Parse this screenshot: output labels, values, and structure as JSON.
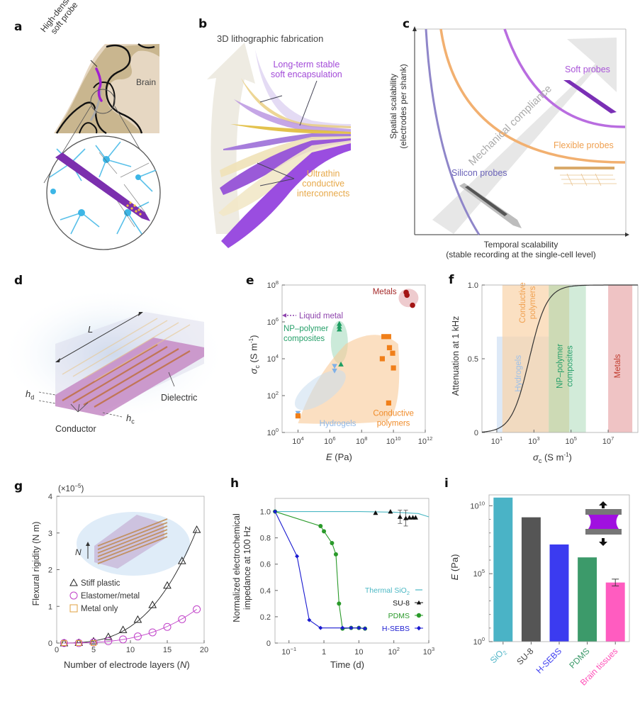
{
  "panels": {
    "a": {
      "label": "a",
      "probe_label_line1": "High-density",
      "probe_label_line2": "soft probe",
      "brain_label": "Brain"
    },
    "b": {
      "label": "b",
      "title": "3D lithographic fabrication",
      "encapsulation_line1": "Long-term stable",
      "encapsulation_line2": "soft encapsulation",
      "interconnect_line1": "Ultrathin",
      "interconnect_line2": "conductive",
      "interconnect_line3": "interconnects"
    },
    "c": {
      "label": "c",
      "ylabel_line1": "Spatial scalability",
      "ylabel_line2": "(electrodes per shank)",
      "xlabel_line1": "Temporal scalability",
      "xlabel_line2": "(stable recording at the single-cell level)",
      "arrow_label": "Mechanical compliance",
      "curves": [
        {
          "name": "Silicon probes",
          "color": "#8f86c9"
        },
        {
          "name": "Flexible probes",
          "color": "#f2a55a"
        },
        {
          "name": "Soft probes",
          "color": "#b35de0"
        }
      ]
    },
    "d": {
      "label": "d",
      "length_label": "L",
      "hd_label": "h",
      "hd_sub": "d",
      "hc_label": "h",
      "hc_sub": "c",
      "dielectric_label": "Dielectric",
      "conductor_label": "Conductor"
    },
    "g_inset": {
      "n_label": "N"
    },
    "i_inset": {
      "icon": "tensile-test-icon"
    }
  },
  "chart_data": [
    {
      "id": "e",
      "label": "e",
      "type": "scatter",
      "xlabel": "E (Pa)",
      "xlabel_var": "E",
      "xlabel_unit": " (Pa)",
      "ylabel_var": "σ",
      "ylabel_sub": "c",
      "ylabel_unit": " (S m",
      "ylabel_sup": "-1",
      "ylabel_end": ")",
      "xscale": "log",
      "yscale": "log",
      "xlim_exp": [
        3,
        12
      ],
      "ylim_exp": [
        0,
        8
      ],
      "xticks": [
        {
          "base": "10",
          "exp": "4",
          "v": 4
        },
        {
          "base": "10",
          "exp": "6",
          "v": 6
        },
        {
          "base": "10",
          "exp": "8",
          "v": 8
        },
        {
          "base": "10",
          "exp": "10",
          "v": 10
        },
        {
          "base": "10",
          "exp": "12",
          "v": 12
        }
      ],
      "yticks": [
        {
          "base": "10",
          "exp": "0",
          "v": 0
        },
        {
          "base": "10",
          "exp": "2",
          "v": 2
        },
        {
          "base": "10",
          "exp": "4",
          "v": 4
        },
        {
          "base": "10",
          "exp": "6",
          "v": 6
        },
        {
          "base": "10",
          "exp": "8",
          "v": 8
        }
      ],
      "annotations": [
        {
          "text": "Metals",
          "color": "#a52a2a"
        },
        {
          "text": "Liquid metal",
          "color": "#8e44ad"
        },
        {
          "text": "NP–polymer",
          "color": "#27a06a"
        },
        {
          "text": "composites",
          "color": "#27a06a"
        },
        {
          "text": "Hydrogels",
          "color": "#8fb8e8"
        },
        {
          "text": "Conductive",
          "color": "#f08c2a"
        },
        {
          "text": "polymers",
          "color": "#f08c2a"
        }
      ],
      "series": [
        {
          "name": "Metals",
          "marker": "circle",
          "color": "#a31515",
          "points_log10": [
            [
              10.8,
              7.6
            ],
            [
              10.85,
              7.45
            ],
            [
              11.2,
              6.9
            ]
          ]
        },
        {
          "name": "Liquid metal",
          "marker": "arrow-left",
          "color": "#8e44ad",
          "points_log10": [
            [
              3.0,
              6.35
            ]
          ]
        },
        {
          "name": "NP-polymer composites",
          "marker": "triangle-up",
          "color": "#1e9e62",
          "points_log10": [
            [
              6.6,
              5.9
            ],
            [
              6.6,
              5.75
            ],
            [
              6.6,
              5.6
            ],
            [
              6.7,
              3.7
            ]
          ]
        },
        {
          "name": "Hydrogels",
          "marker": "triangle-down",
          "color": "#7fb1e8",
          "points_log10": [
            [
              6.3,
              3.6
            ],
            [
              6.3,
              3.35
            ],
            [
              4.0,
              1.05
            ]
          ]
        },
        {
          "name": "Conductive polymers",
          "marker": "square",
          "color": "#f07f1a",
          "points_log10": [
            [
              9.4,
              5.2
            ],
            [
              9.7,
              5.2
            ],
            [
              9.75,
              4.6
            ],
            [
              9.95,
              4.3
            ],
            [
              9.3,
              4.0
            ],
            [
              10.0,
              3.5
            ],
            [
              9.7,
              1.6
            ],
            [
              4.0,
              0.9
            ]
          ]
        }
      ]
    },
    {
      "id": "f",
      "label": "f",
      "type": "line",
      "ylabel": "Attenuation at 1 kHz",
      "xlabel_var": "σ",
      "xlabel_sub": "c",
      "xlabel_unit": " (S m",
      "xlabel_sup": "-1",
      "xlabel_end": ")",
      "xscale": "log",
      "xlim_exp": [
        0.2,
        8.6
      ],
      "ylim": [
        0,
        1.0
      ],
      "xticks": [
        {
          "base": "10",
          "exp": "1",
          "v": 1
        },
        {
          "base": "10",
          "exp": "3",
          "v": 3
        },
        {
          "base": "10",
          "exp": "5",
          "v": 5
        },
        {
          "base": "10",
          "exp": "7",
          "v": 7
        }
      ],
      "yticks": [
        {
          "text": "0",
          "v": 0
        },
        {
          "text": "0.5",
          "v": 0.5
        },
        {
          "text": "1.0",
          "v": 1.0
        }
      ],
      "bands": [
        {
          "name": "Hydrogels",
          "range_log10": [
            1.0,
            3.8
          ],
          "ymax": 0.65,
          "color": "#cfe0f4",
          "text_color": "#9cc0ea"
        },
        {
          "name": "Conductive polymers",
          "text1": "Conductive",
          "text2": "polymers",
          "range_log10": [
            1.3,
            3.8
          ],
          "ymax": 1.0,
          "color": "#f9d3a8",
          "text_color": "#f0a050"
        },
        {
          "name": "NP–polymer composites",
          "text1": "NP–polymer",
          "text2": "composites",
          "range_log10": [
            3.8,
            5.8
          ],
          "ymax": 1.0,
          "color": "#bfe3c9",
          "text_color": "#27a06a"
        },
        {
          "name": "Metals",
          "range_log10": [
            7.0,
            8.3
          ],
          "ymax": 1.0,
          "color": "#e8a9ab",
          "text_color": "#c0392b"
        }
      ],
      "curve": {
        "kind": "sigmoid",
        "midpoint_log10": 2.75,
        "steepness": 1.55,
        "color": "#333333"
      }
    },
    {
      "id": "g",
      "label": "g",
      "type": "line",
      "ylabel": "Flexural rigidity (N m)",
      "xlabel": "Number of electrode layers (N)",
      "xlabel_pre": "Number of electrode layers (",
      "xlabel_var": "N",
      "xlabel_post": ")",
      "multiplier": "(×10",
      "multiplier_exp": "−5",
      "multiplier_end": ")",
      "xlim": [
        0,
        20
      ],
      "ylim": [
        0,
        4
      ],
      "xticks": [
        0,
        5,
        10,
        15,
        20
      ],
      "yticks": [
        0,
        1,
        2,
        3,
        4
      ],
      "legend": [
        {
          "name": "Stiff plastic",
          "marker": "triangle-open",
          "color": "#222222"
        },
        {
          "name": "Elastomer/metal",
          "marker": "circle-open",
          "color": "#c040c8"
        },
        {
          "name": "Metal only",
          "marker": "square-open",
          "color": "#e0a040"
        }
      ],
      "series": [
        {
          "name": "Stiff plastic",
          "color": "#222222",
          "x": [
            1,
            3,
            5,
            7,
            9,
            11,
            13,
            15,
            17,
            19
          ],
          "y": [
            0.0,
            0.01,
            0.05,
            0.17,
            0.36,
            0.64,
            1.04,
            1.57,
            2.24,
            3.09
          ]
        },
        {
          "name": "Elastomer/metal",
          "color": "#c040c8",
          "x": [
            1,
            3,
            5,
            7,
            9,
            11,
            13,
            15,
            17,
            19
          ],
          "y": [
            0.0,
            0.0,
            0.02,
            0.05,
            0.1,
            0.18,
            0.29,
            0.44,
            0.65,
            0.92
          ]
        },
        {
          "name": "Metal only",
          "color": "#e0a040",
          "x": [
            1,
            3,
            5
          ],
          "y": [
            0.0,
            0.0,
            0.0
          ]
        }
      ]
    },
    {
      "id": "h",
      "label": "h",
      "type": "line",
      "ylabel_line1": "Normalized electrochemical",
      "ylabel_line2": "impedance at 100 Hz",
      "xlabel": "Time (d)",
      "xscale": "log",
      "xlim_exp": [
        -1.4,
        3
      ],
      "ylim": [
        0,
        1.1
      ],
      "xticks": [
        {
          "text": "10",
          "exp": "−1",
          "v": -1
        },
        {
          "text": "1",
          "exp": "",
          "v": 0
        },
        {
          "text": "10",
          "exp": "",
          "v": 1
        },
        {
          "text": "10",
          "exp": "2",
          "v": 2
        },
        {
          "text": "10",
          "exp": "3",
          "v": 3
        }
      ],
      "yticks": [
        {
          "text": "0",
          "v": 0
        },
        {
          "text": "0.2",
          "v": 0.2
        },
        {
          "text": "0.4",
          "v": 0.4
        },
        {
          "text": "0.6",
          "v": 0.6
        },
        {
          "text": "0.8",
          "v": 0.8
        },
        {
          "text": "1.0",
          "v": 1.0
        }
      ],
      "legend": [
        {
          "name": "Thermal SiO",
          "sub": "2",
          "color": "#4bb8c4",
          "marker": "line"
        },
        {
          "name": "SU-8",
          "sub": "",
          "color": "#111111",
          "marker": "triangle"
        },
        {
          "name": "PDMS",
          "sub": "",
          "color": "#2a9a2a",
          "marker": "circle"
        },
        {
          "name": "H-SEBS",
          "sub": "",
          "color": "#1a1ad0",
          "marker": "diamond"
        }
      ],
      "series": [
        {
          "name": "Thermal SiO2",
          "color": "#4bb8c4",
          "line_only": true,
          "x": [
            0.04,
            1,
            10,
            100,
            500,
            1000
          ],
          "y": [
            1.0,
            1.0,
            1.0,
            0.995,
            0.985,
            0.96
          ]
        },
        {
          "name": "SU-8",
          "color": "#111111",
          "marker": "triangle",
          "no_line": true,
          "x": [
            30,
            80,
            150,
            220,
            280,
            350,
            420
          ],
          "y": [
            0.99,
            1.0,
            0.96,
            0.95,
            0.955,
            0.955,
            0.955
          ],
          "err": [
            0,
            0,
            0.05,
            0.06,
            0,
            0,
            0
          ]
        },
        {
          "name": "PDMS",
          "color": "#2a9a2a",
          "marker": "circle",
          "x": [
            0.04,
            0.8,
            1.0,
            1.7,
            2.2,
            2.7,
            3.4,
            6,
            10,
            15
          ],
          "y": [
            1.0,
            0.89,
            0.85,
            0.76,
            0.675,
            0.3,
            0.11,
            0.115,
            0.115,
            0.11
          ]
        },
        {
          "name": "H-SEBS",
          "color": "#1a1ad0",
          "marker": "diamond",
          "x": [
            0.04,
            0.17,
            0.38,
            0.8,
            3.4,
            6,
            10,
            15
          ],
          "y": [
            1.0,
            0.66,
            0.175,
            0.115,
            0.115,
            0.115,
            0.115,
            0.11
          ]
        }
      ]
    },
    {
      "id": "i",
      "label": "i",
      "type": "bar",
      "ylabel_var": "E",
      "ylabel_unit": " (Pa)",
      "yscale": "log",
      "ylim_exp": [
        0,
        10.8
      ],
      "yticks": [
        {
          "base": "10",
          "exp": "0",
          "v": 0
        },
        {
          "base": "10",
          "exp": "5",
          "v": 5
        },
        {
          "base": "10",
          "exp": "10",
          "v": 10
        }
      ],
      "categories": [
        "SiO2",
        "SU-8",
        "H-SEBS",
        "PDMS",
        "Brain tissues"
      ],
      "category_display": [
        {
          "text": "SiO",
          "sub": "2",
          "color": "#4ab3c6"
        },
        {
          "text": "SU-8",
          "sub": "",
          "color": "#444444"
        },
        {
          "text": "H-SEBS",
          "sub": "",
          "color": "#3b3bf0"
        },
        {
          "text": "PDMS",
          "sub": "",
          "color": "#3c9a6a"
        },
        {
          "text": "Brain tissues",
          "sub": "",
          "color": "#ff4fb8"
        }
      ],
      "values_log10": [
        10.6,
        9.15,
        7.15,
        6.2,
        4.35
      ],
      "error_log10": [
        0,
        0,
        0,
        0,
        0.25
      ],
      "colors": [
        "#4ab3c6",
        "#555555",
        "#3b3bf0",
        "#3c9a6a",
        "#ff5cc0"
      ]
    }
  ]
}
